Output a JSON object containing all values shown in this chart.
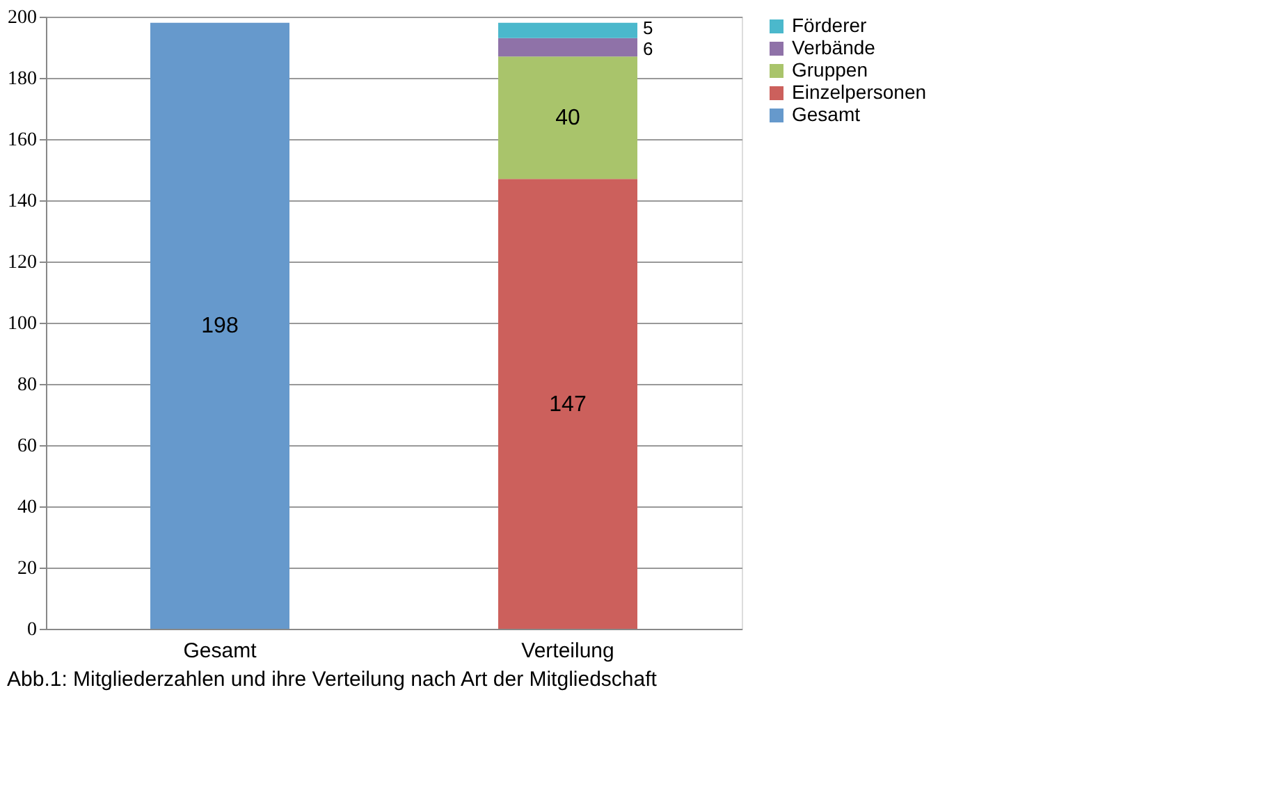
{
  "chart_data": {
    "type": "bar",
    "stacked": true,
    "categories": [
      "Gesamt",
      "Verteilung"
    ],
    "series": [
      {
        "name": "Gesamt",
        "color": "#6699cc",
        "values": [
          198,
          null
        ]
      },
      {
        "name": "Einzelpersonen",
        "color": "#cc605c",
        "values": [
          null,
          147
        ]
      },
      {
        "name": "Gruppen",
        "color": "#a9c46b",
        "values": [
          null,
          40
        ]
      },
      {
        "name": "Verbände",
        "color": "#8f72a8",
        "values": [
          null,
          6
        ]
      },
      {
        "name": "Förderer",
        "color": "#4bb8cc",
        "values": [
          null,
          5
        ]
      }
    ],
    "ylim": [
      0,
      200
    ],
    "yticks": [
      0,
      20,
      40,
      60,
      80,
      100,
      120,
      140,
      160,
      180,
      200
    ],
    "grid": "y",
    "legend": "right",
    "data_labels": true,
    "annotations": [
      "Abb.1: Mitgliederzahlen und ihre Verteilung nach Art der Mitgliedschaft"
    ]
  }
}
